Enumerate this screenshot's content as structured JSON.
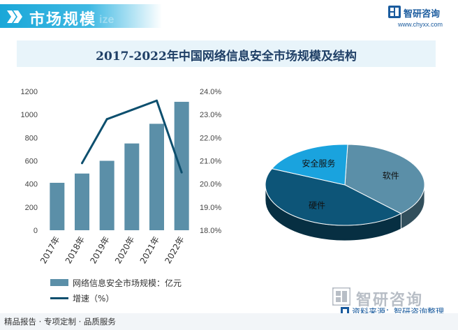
{
  "header": {
    "title": "市场规模",
    "ghost_text": "ize",
    "brand_name": "智研咨询",
    "brand_url": "www.chyxx.com"
  },
  "colors": {
    "bar": "#5b8fa8",
    "line": "#0d4f6e",
    "pie_software": "#5b8fa8",
    "pie_hardware": "#0d5578",
    "pie_service": "#1aa3de",
    "accent": "#1aa7d8"
  },
  "chart_data": [
    {
      "type": "bar",
      "title": "2017-2022年中国网络信息安全市场规模及结构",
      "categories": [
        "2017年",
        "2018年",
        "2019年",
        "2020年",
        "2021年",
        "2022年"
      ],
      "series": [
        {
          "name": "网络信息安全市场规模：亿元",
          "kind": "bar",
          "axis": "left",
          "values": [
            410,
            490,
            600,
            750,
            920,
            1110
          ]
        },
        {
          "name": "增速（%）",
          "kind": "line",
          "axis": "right",
          "values": [
            null,
            20.9,
            22.8,
            23.2,
            23.6,
            20.5
          ]
        }
      ],
      "left_axis": {
        "min": 0,
        "max": 1200,
        "ticks": [
          "0",
          "200",
          "400",
          "600",
          "800",
          "1000",
          "1200"
        ]
      },
      "right_axis": {
        "min": 18.0,
        "max": 24.0,
        "ticks": [
          "18.0%",
          "19.0%",
          "20.0%",
          "21.0%",
          "22.0%",
          "23.0%",
          "24.0%"
        ]
      },
      "legend": [
        "网络信息安全市场规模：亿元",
        "增速（%）"
      ]
    },
    {
      "type": "pie",
      "labels": [
        "软件",
        "硬件",
        "安全服务"
      ],
      "values": [
        37,
        44,
        19
      ]
    }
  ],
  "footer": {
    "left_text": "精品报告 · 专项定制 · 品质服务",
    "brand_name": "智研咨询",
    "source": "资料来源：智研咨询整理"
  }
}
